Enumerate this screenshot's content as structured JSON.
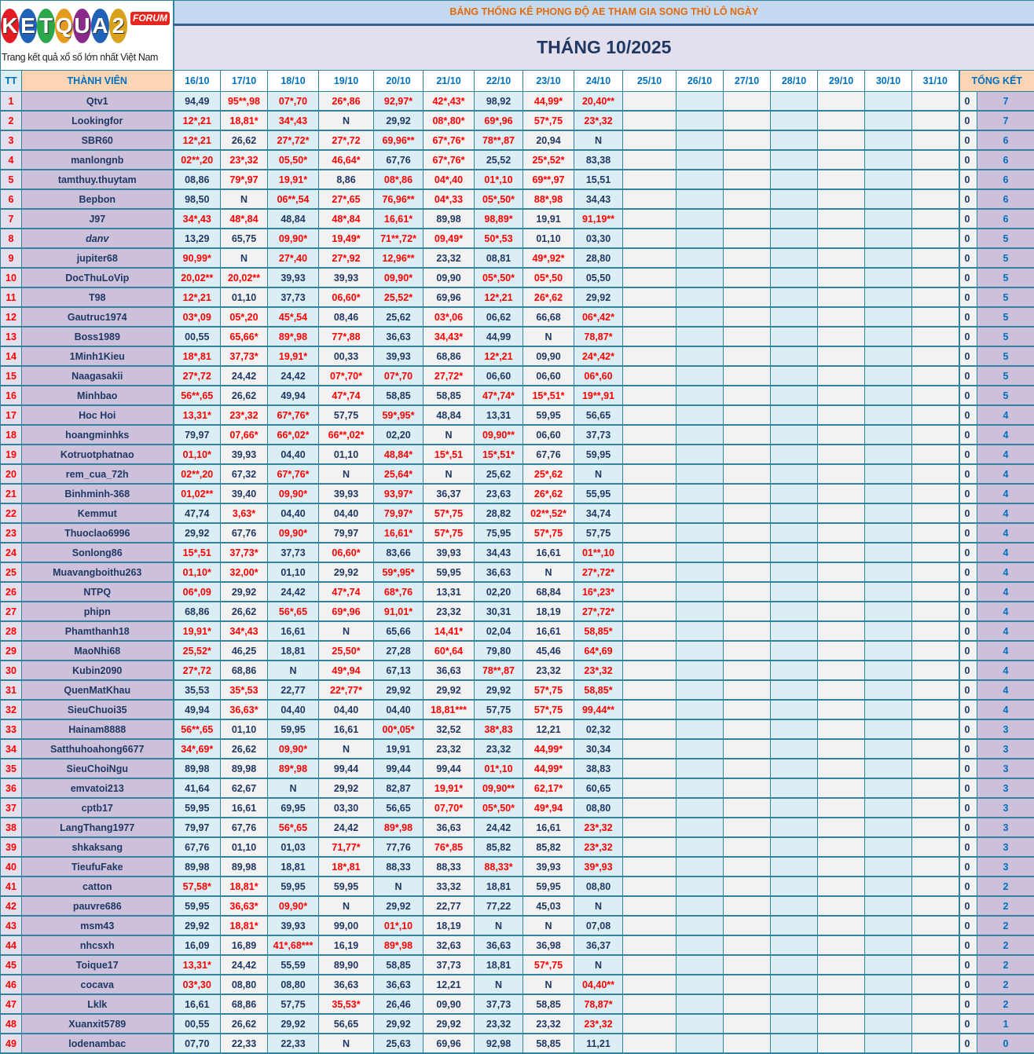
{
  "logo": {
    "text": "KETQUA2",
    "badge": "FORUM",
    "tagline": "Trang kết quả xổ số lớn nhất Việt Nam",
    "ball_colors": [
      "#e31b23",
      "#1f62b7",
      "#2aa84a",
      "#e59b1b",
      "#8b2a8b",
      "#1f62b7",
      "#d9a21b"
    ]
  },
  "header": {
    "title": "BẢNG THỐNG KÊ PHONG ĐỘ AE THAM GIA SONG THỦ LÔ NGÀY",
    "month": "THÁNG 10/2025",
    "tt": "TT",
    "member": "THÀNH VIÊN",
    "summary": "TỔNG KẾT",
    "dates": [
      "16/10",
      "17/10",
      "18/10",
      "19/10",
      "20/10",
      "21/10",
      "22/10",
      "23/10",
      "24/10",
      "25/10",
      "26/10",
      "27/10",
      "28/10",
      "29/10",
      "30/10",
      "31/10"
    ]
  },
  "colors": {
    "border": "#31849b",
    "hit": "#ff0000",
    "name_brown": "#974706",
    "name_blue": "#00b0f0",
    "name_orange": "#ffa500",
    "total": "#0070c0"
  },
  "rows": [
    [
      "1",
      "Qtv1",
      "brown",
      [
        "94,49",
        "95**,98",
        "07*,70",
        "26*,86",
        "92,97*",
        "42*,43*",
        "98,92",
        "44,99*",
        "20,40**"
      ],
      "0",
      "7"
    ],
    [
      "2",
      "Lookingfor",
      "blue",
      [
        "12*,21",
        "18,81*",
        "34*,43",
        "N",
        "29,92",
        "08*,80*",
        "69*,96",
        "57*,75",
        "23*,32"
      ],
      "0",
      "7"
    ],
    [
      "3",
      "SBR60",
      "black",
      [
        "12*,21",
        "26,62",
        "27*,72*",
        "27*,72",
        "69,96**",
        "67*,76*",
        "78**,87",
        "20,94",
        "N"
      ],
      "0",
      "6"
    ],
    [
      "4",
      "manlongnb",
      "black",
      [
        "02**,20",
        "23*,32",
        "05,50*",
        "46,64*",
        "67,76",
        "67*,76*",
        "25,52",
        "25*,52*",
        "83,38"
      ],
      "0",
      "6"
    ],
    [
      "5",
      "tamthuy.thuytam",
      "black",
      [
        "08,86",
        "79*,97",
        "19,91*",
        "8,86",
        "08*,86",
        "04*,40",
        "01*,10",
        "69**,97",
        "15,51"
      ],
      "0",
      "6"
    ],
    [
      "6",
      "Bepbon",
      "black",
      [
        "98,50",
        "N",
        "06**,54",
        "27*,65",
        "76,96**",
        "04*,33",
        "05*,50*",
        "88*,98",
        "34,43"
      ],
      "0",
      "6"
    ],
    [
      "7",
      "J97",
      "blue",
      [
        "34*,43",
        "48*,84",
        "48,84",
        "48*,84",
        "16,61*",
        "89,98",
        "98,89*",
        "19,91",
        "91,19**"
      ],
      "0",
      "6"
    ],
    [
      "8",
      "danv",
      "brown-italic",
      [
        "13,29",
        "65,75",
        "09,90*",
        "19,49*",
        "71**,72*",
        "09,49*",
        "50*,53",
        "01,10",
        "03,30"
      ],
      "0",
      "5"
    ],
    [
      "9",
      "jupiter68",
      "brown",
      [
        "90,99*",
        "N",
        "27*,40",
        "27*,92",
        "12,96**",
        "23,32",
        "08,81",
        "49*,92*",
        "28,80"
      ],
      "0",
      "5"
    ],
    [
      "10",
      "DocThuLoVip",
      "blue",
      [
        "20,02**",
        "20,02**",
        "39,93",
        "39,93",
        "09,90*",
        "09,90",
        "05*,50*",
        "05*,50",
        "05,50"
      ],
      "0",
      "5"
    ],
    [
      "11",
      "T98",
      "brown",
      [
        "12*,21",
        "01,10",
        "37,73",
        "06,60*",
        "25,52*",
        "69,96",
        "12*,21",
        "26*,62",
        "29,92"
      ],
      "0",
      "5"
    ],
    [
      "12",
      "Gautruc1974",
      "black",
      [
        "03*,09",
        "05*,20",
        "45*,54",
        "08,46",
        "25,62",
        "03*,06",
        "06,62",
        "66,68",
        "06*,42*"
      ],
      "0",
      "5"
    ],
    [
      "13",
      "Boss1989",
      "brown",
      [
        "00,55",
        "65,66*",
        "89*,98",
        "77*,88",
        "36,63",
        "34,43*",
        "44,99",
        "N",
        "78,87*"
      ],
      "0",
      "5"
    ],
    [
      "14",
      "1Minh1Kieu",
      "black",
      [
        "18*,81",
        "37,73*",
        "19,91*",
        "00,33",
        "39,93",
        "68,86",
        "12*,21",
        "09,90",
        "24*,42*"
      ],
      "0",
      "5"
    ],
    [
      "15",
      "Naagasakii",
      "black",
      [
        "27*,72",
        "24,42",
        "24,42",
        "07*,70*",
        "07*,70",
        "27,72*",
        "06,60",
        "06,60",
        "06*,60"
      ],
      "0",
      "5"
    ],
    [
      "16",
      "Minhbao",
      "brown",
      [
        "56**,65",
        "26,62",
        "49,94",
        "47*,74",
        "58,85",
        "58,85",
        "47*,74*",
        "15*,51*",
        "19**,91"
      ],
      "0",
      "5"
    ],
    [
      "17",
      "Hoc Hoi",
      "brown",
      [
        "13,31*",
        "23*,32",
        "67*,76*",
        "57,75",
        "59*,95*",
        "48,84",
        "13,31",
        "59,95",
        "56,65"
      ],
      "0",
      "4"
    ],
    [
      "18",
      "hoangminhks",
      "brown",
      [
        "79,97",
        "07,66*",
        "66*,02*",
        "66**,02*",
        "02,20",
        "N",
        "09,90**",
        "06,60",
        "37,73"
      ],
      "0",
      "4"
    ],
    [
      "19",
      "Kotruotphatnao",
      "black",
      [
        "01,10*",
        "39,93",
        "04,40",
        "01,10",
        "48,84*",
        "15*,51",
        "15*,51*",
        "67,76",
        "59,95"
      ],
      "0",
      "4"
    ],
    [
      "20",
      "rem_cua_72h",
      "brown",
      [
        "02**,20",
        "67,32",
        "67*,76*",
        "N",
        "25,64*",
        "N",
        "25,62",
        "25*,62",
        "N"
      ],
      "0",
      "4"
    ],
    [
      "21",
      "Binhminh-368",
      "black",
      [
        "01,02**",
        "39,40",
        "09,90*",
        "39,93",
        "93,97*",
        "36,37",
        "23,63",
        "26*,62",
        "55,95"
      ],
      "0",
      "4"
    ],
    [
      "22",
      "Kemmut",
      "brown",
      [
        "47,74",
        "3,63*",
        "04,40",
        "04,40",
        "79,97*",
        "57*,75",
        "28,82",
        "02**,52*",
        "34,74"
      ],
      "0",
      "4"
    ],
    [
      "23",
      "Thuoclao6996",
      "black",
      [
        "29,92",
        "67,76",
        "09,90*",
        "79,97",
        "16,61*",
        "57*,75",
        "75,95",
        "57*,75",
        "57,75"
      ],
      "0",
      "4"
    ],
    [
      "24",
      "Sonlong86",
      "blue",
      [
        "15*,51",
        "37,73*",
        "37,73",
        "06,60*",
        "83,66",
        "39,93",
        "34,43",
        "16,61",
        "01**,10"
      ],
      "0",
      "4"
    ],
    [
      "25",
      "Muavangboithu263",
      "brown",
      [
        "01,10*",
        "32,00*",
        "01,10",
        "29,92",
        "59*,95*",
        "59,95",
        "36,63",
        "N",
        "27*,72*"
      ],
      "0",
      "4"
    ],
    [
      "26",
      "NTPQ",
      "brown",
      [
        "06*,09",
        "29,92",
        "24,42",
        "47*,74",
        "68*,76",
        "13,31",
        "02,20",
        "68,84",
        "16*,23*"
      ],
      "0",
      "4"
    ],
    [
      "27",
      "phipn",
      "black",
      [
        "68,86",
        "26,62",
        "56*,65",
        "69*,96",
        "91,01*",
        "23,32",
        "30,31",
        "18,19",
        "27*,72*"
      ],
      "0",
      "4"
    ],
    [
      "28",
      "Phamthanh18",
      "black",
      [
        "19,91*",
        "34*,43",
        "16,61",
        "N",
        "65,66",
        "14,41*",
        "02,04",
        "16,61",
        "58,85*"
      ],
      "0",
      "4"
    ],
    [
      "29",
      "MaoNhi68",
      "brown",
      [
        "25,52*",
        "46,25",
        "18,81",
        "25,50*",
        "27,28",
        "60*,64",
        "79,80",
        "45,46",
        "64*,69"
      ],
      "0",
      "4"
    ],
    [
      "30",
      "Kubin2090",
      "brown",
      [
        "27*,72",
        "68,86",
        "N",
        "49*,94",
        "67,13",
        "36,63",
        "78**,87",
        "23,32",
        "23*,32"
      ],
      "0",
      "4"
    ],
    [
      "31",
      "QuenMatKhau",
      "brown",
      [
        "35,53",
        "35*,53",
        "22,77",
        "22*,77*",
        "29,92",
        "29,92",
        "29,92",
        "57*,75",
        "58,85*"
      ],
      "0",
      "4"
    ],
    [
      "32",
      "SieuChuoi35",
      "brown",
      [
        "49,94",
        "36,63*",
        "04,40",
        "04,40",
        "04,40",
        "18,81***",
        "57,75",
        "57*,75",
        "99,44**"
      ],
      "0",
      "4"
    ],
    [
      "33",
      "Hainam8888",
      "orange",
      [
        "56**,65",
        "01,10",
        "59,95",
        "16,61",
        "00*,05*",
        "32,52",
        "38*,83",
        "12,21",
        "02,32"
      ],
      "0",
      "3"
    ],
    [
      "34",
      "Satthuhoahong6677",
      "orange",
      [
        "34*,69*",
        "26,62",
        "09,90*",
        "N",
        "19,91",
        "23,32",
        "23,32",
        "44,99*",
        "30,34"
      ],
      "0",
      "3"
    ],
    [
      "35",
      "SieuChoiNgu",
      "brown",
      [
        "89,98",
        "89,98",
        "89*,98",
        "99,44",
        "99,44",
        "99,44",
        "01*,10",
        "44,99*",
        "38,83"
      ],
      "0",
      "3"
    ],
    [
      "36",
      "emvatoi213",
      "black",
      [
        "41,64",
        "62,67",
        "N",
        "29,92",
        "82,87",
        "19,91*",
        "09,90**",
        "62,17*",
        "60,65"
      ],
      "0",
      "3"
    ],
    [
      "37",
      "cptb17",
      "brown",
      [
        "59,95",
        "16,61",
        "69,95",
        "03,30",
        "56,65",
        "07,70*",
        "05*,50*",
        "49*,94",
        "08,80"
      ],
      "0",
      "3"
    ],
    [
      "38",
      "LangThang1977",
      "brown",
      [
        "79,97",
        "67,76",
        "56*,65",
        "24,42",
        "89*,98",
        "36,63",
        "24,42",
        "16,61",
        "23*,32"
      ],
      "0",
      "3"
    ],
    [
      "39",
      "shkaksang",
      "brown",
      [
        "67,76",
        "01,10",
        "01,03",
        "71,77*",
        "77,76",
        "76*,85",
        "85,82",
        "85,82",
        "23*,32"
      ],
      "0",
      "3"
    ],
    [
      "40",
      "TieufuFake",
      "brown",
      [
        "89,98",
        "89,98",
        "18,81",
        "18*,81",
        "88,33",
        "88,33",
        "88,33*",
        "39,93",
        "39*,93"
      ],
      "0",
      "3"
    ],
    [
      "41",
      "catton",
      "brown",
      [
        "57,58*",
        "18,81*",
        "59,95",
        "59,95",
        "N",
        "33,32",
        "18,81",
        "59,95",
        "08,80"
      ],
      "0",
      "2"
    ],
    [
      "42",
      "pauvre686",
      "black",
      [
        "59,95",
        "36,63*",
        "09,90*",
        "N",
        "29,92",
        "22,77",
        "77,22",
        "45,03",
        "N"
      ],
      "0",
      "2"
    ],
    [
      "43",
      "msm43",
      "black",
      [
        "29,92",
        "18,81*",
        "39,93",
        "99,00",
        "01*,10",
        "18,19",
        "N",
        "N",
        "07,08"
      ],
      "0",
      "2"
    ],
    [
      "44",
      "nhcsxh",
      "black",
      [
        "16,09",
        "16,89",
        "41*,68***",
        "16,19",
        "89*,98",
        "32,63",
        "36,63",
        "36,98",
        "36,37"
      ],
      "0",
      "2"
    ],
    [
      "45",
      "Toique17",
      "black",
      [
        "13,31*",
        "24,42",
        "55,59",
        "89,90",
        "58,85",
        "37,73",
        "18,81",
        "57*,75",
        "N"
      ],
      "0",
      "2"
    ],
    [
      "46",
      "cocava",
      "brown",
      [
        "03*,30",
        "08,80",
        "08,80",
        "36,63",
        "36,63",
        "12,21",
        "N",
        "N",
        "04,40**"
      ],
      "0",
      "2"
    ],
    [
      "47",
      "Lklk",
      "brown",
      [
        "16,61",
        "68,86",
        "57,75",
        "35,53*",
        "26,46",
        "09,90",
        "37,73",
        "58,85",
        "78,87*"
      ],
      "0",
      "2"
    ],
    [
      "48",
      "Xuanxit5789",
      "brown",
      [
        "00,55",
        "26,62",
        "29,92",
        "56,65",
        "29,92",
        "29,92",
        "23,32",
        "23,32",
        "23*,32"
      ],
      "0",
      "1"
    ],
    [
      "49",
      "lodenambac",
      "black",
      [
        "07,70",
        "22,33",
        "22,33",
        "N",
        "25,63",
        "69,96",
        "92,98",
        "58,85",
        "11,21"
      ],
      "0",
      "0"
    ]
  ]
}
